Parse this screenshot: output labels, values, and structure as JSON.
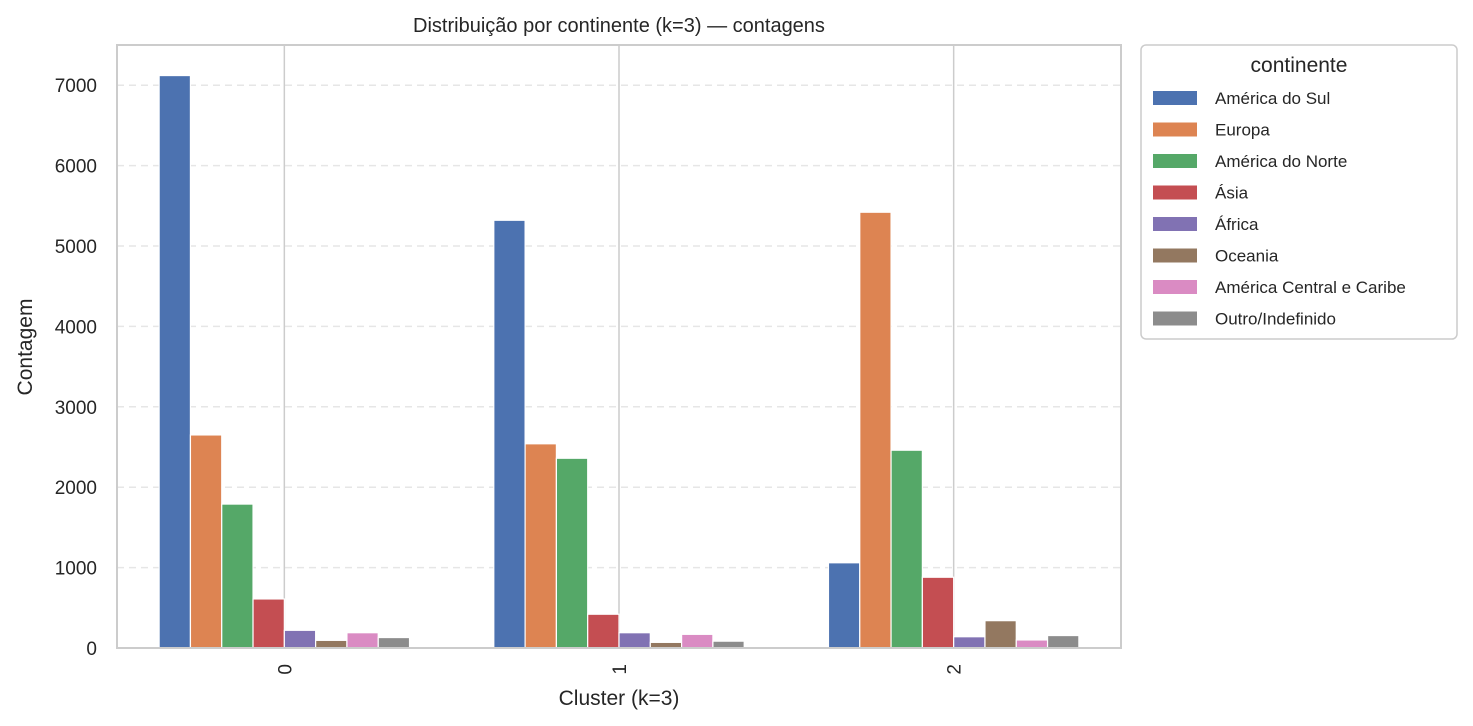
{
  "chart_data": {
    "type": "bar",
    "title": "Distribuição por continente (k=3) — contagens",
    "xlabel": "Cluster (k=3)",
    "ylabel": "Contagem",
    "categories": [
      "0",
      "1",
      "2"
    ],
    "ylim": [
      0,
      7500
    ],
    "yticks": [
      0,
      1000,
      2000,
      3000,
      4000,
      5000,
      6000,
      7000
    ],
    "grid": true,
    "legend": {
      "title": "continente",
      "placement": "outside-top-right"
    },
    "series": [
      {
        "name": "América do Sul",
        "color": "#4c72b0",
        "values": [
          7120,
          5320,
          1060
        ]
      },
      {
        "name": "Europa",
        "color": "#dd8452",
        "values": [
          2650,
          2540,
          5420
        ]
      },
      {
        "name": "América do Norte",
        "color": "#55a868",
        "values": [
          1790,
          2360,
          2460
        ]
      },
      {
        "name": "Ásia",
        "color": "#c44e52",
        "values": [
          610,
          420,
          880
        ]
      },
      {
        "name": "África",
        "color": "#8172b3",
        "values": [
          220,
          190,
          140
        ]
      },
      {
        "name": "Oceania",
        "color": "#937860",
        "values": [
          95,
          70,
          340
        ]
      },
      {
        "name": "América Central e Caribe",
        "color": "#da8bc3",
        "values": [
          190,
          170,
          100
        ]
      },
      {
        "name": "Outro/Indefinido",
        "color": "#8c8c8c",
        "values": [
          130,
          85,
          155
        ]
      }
    ]
  }
}
